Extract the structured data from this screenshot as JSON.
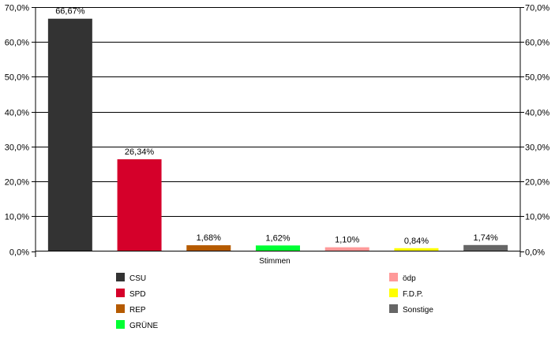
{
  "chart_data": {
    "type": "bar",
    "xlabel": "Stimmen",
    "ylim": [
      0,
      70
    ],
    "ytick_values": [
      0,
      10,
      20,
      30,
      40,
      50,
      60,
      70
    ],
    "ytick_labels": [
      "0,0%",
      "10,0%",
      "20,0%",
      "30,0%",
      "40,0%",
      "50,0%",
      "60,0%",
      "70,0%"
    ],
    "grid": true,
    "legend_position": "bottom",
    "series": [
      {
        "name": "CSU",
        "value": 66.67,
        "label": "66,67%",
        "color": "#333333"
      },
      {
        "name": "SPD",
        "value": 26.34,
        "label": "26,34%",
        "color": "#d5002a"
      },
      {
        "name": "REP",
        "value": 1.68,
        "label": "1,68%",
        "color": "#b55a00"
      },
      {
        "name": "GRÜNE",
        "value": 1.62,
        "label": "1,62%",
        "color": "#00ff33"
      },
      {
        "name": "ödp",
        "value": 1.1,
        "label": "1,10%",
        "color": "#ff9999"
      },
      {
        "name": "F.D.P.",
        "value": 0.84,
        "label": "0,84%",
        "color": "#ffff00"
      },
      {
        "name": "Sonstige",
        "value": 1.74,
        "label": "1,74%",
        "color": "#666666"
      }
    ]
  }
}
